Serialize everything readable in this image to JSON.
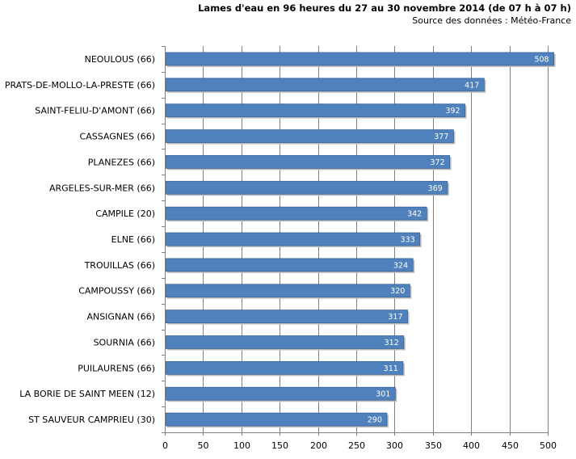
{
  "chart_data": {
    "type": "bar",
    "orientation": "horizontal",
    "title": "Lames d'eau  en 96 heures du 27 au 30 novembre 2014 (de 07 h à 07 h)",
    "subtitle": "Source des données : Météo-France",
    "xlabel": "",
    "ylabel": "",
    "xlim": [
      0,
      500
    ],
    "xticks": [
      0,
      50,
      100,
      150,
      200,
      250,
      300,
      350,
      400,
      450,
      500
    ],
    "grid": true,
    "colors": {
      "bar": "#4f81bd",
      "bar_edge": "#3a659a",
      "grid": "#808080",
      "axis": "#808080"
    },
    "categories": [
      "NEOULOUS (66)",
      "PRATS-DE-MOLLO-LA-PRESTE (66)",
      "SAINT-FELIU-D'AMONT (66)",
      "CASSAGNES (66)",
      "PLANEZES (66)",
      "ARGELES-SUR-MER (66)",
      "CAMPILE (20)",
      "ELNE (66)",
      "TROUILLAS (66)",
      "CAMPOUSSY (66)",
      "ANSIGNAN (66)",
      "SOURNIA (66)",
      "PUILAURENS (66)",
      "LA BORIE DE SAINT MEEN (12)",
      "ST SAUVEUR CAMPRIEU (30)"
    ],
    "values": [
      508,
      417,
      392,
      377,
      372,
      369,
      342,
      333,
      324,
      320,
      317,
      312,
      311,
      301,
      290
    ]
  }
}
